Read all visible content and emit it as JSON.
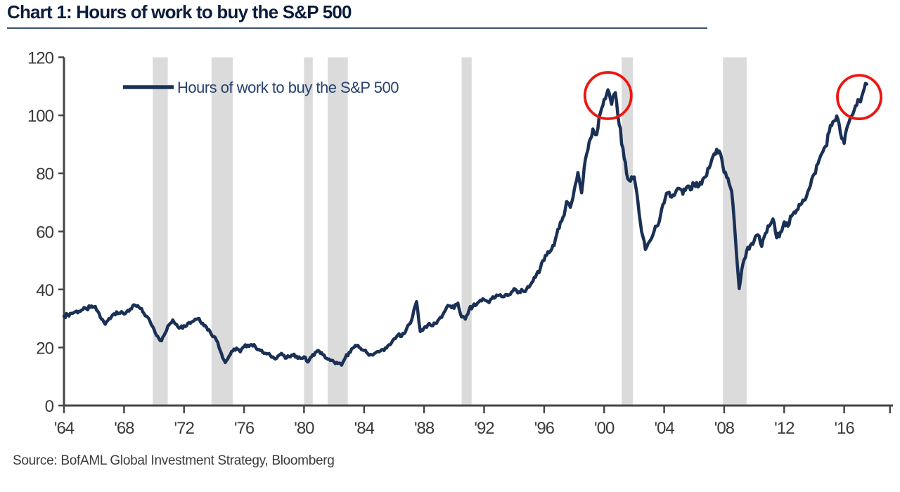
{
  "title": "Chart 1: Hours of work to buy the S&P 500",
  "source": "Source: BofAML Global Investment Strategy, Bloomberg",
  "colors": {
    "line": "#1a3055",
    "legend_text": "#26416f",
    "axis": "#454545",
    "tick_label": "#3a3a3a",
    "recession_band": "#dbdbdb",
    "annotation_red": "#ee1511",
    "title_text": "#0c1c3a",
    "title_rule": "#37506f"
  },
  "chart_data": {
    "type": "line",
    "title": "Chart 1: Hours of work to buy the S&P 500",
    "xlabel": "",
    "ylabel": "",
    "ylim": [
      0,
      120
    ],
    "xlim": [
      1964,
      2019.25
    ],
    "grid": false,
    "legend_position": "top-left-inside",
    "y_ticks": [
      0,
      20,
      40,
      60,
      80,
      100,
      120
    ],
    "x_ticks": [
      1964,
      1968,
      1972,
      1976,
      1980,
      1984,
      1988,
      1992,
      1996,
      2000,
      2004,
      2008,
      2012,
      2016
    ],
    "x_tick_labels": [
      "'64",
      "'68",
      "'72",
      "'76",
      "'80",
      "'84",
      "'88",
      "'92",
      "'96",
      "'00",
      "'04",
      "'08",
      "'12",
      "'16"
    ],
    "axis_end_tick_year": 2019.05,
    "recession_bands": [
      [
        1969.92,
        1970.92
      ],
      [
        1973.83,
        1975.25
      ],
      [
        1980.0,
        1980.58
      ],
      [
        1981.58,
        1982.92
      ],
      [
        1990.5,
        1991.17
      ],
      [
        2001.17,
        2001.92
      ],
      [
        2007.92,
        2009.5
      ]
    ],
    "annotation_circles": [
      {
        "year": 2000.26,
        "value": 106.8,
        "radius_px": 33
      },
      {
        "year": 2017.0,
        "value": 106.3,
        "radius_px": 31
      }
    ],
    "series": [
      {
        "name": "Hours of work to buy the S&P 500",
        "points": [
          [
            1964.0,
            30.8
          ],
          [
            1964.25,
            31.3
          ],
          [
            1964.5,
            31.8
          ],
          [
            1964.75,
            32.3
          ],
          [
            1965.0,
            32.5
          ],
          [
            1965.25,
            33.0
          ],
          [
            1965.5,
            33.3
          ],
          [
            1965.75,
            33.8
          ],
          [
            1966.0,
            34.0
          ],
          [
            1966.25,
            32.5
          ],
          [
            1966.5,
            29.8
          ],
          [
            1966.75,
            28.0
          ],
          [
            1967.0,
            30.0
          ],
          [
            1967.25,
            31.3
          ],
          [
            1967.5,
            32.3
          ],
          [
            1967.75,
            31.8
          ],
          [
            1968.0,
            31.5
          ],
          [
            1968.25,
            32.8
          ],
          [
            1968.5,
            33.3
          ],
          [
            1968.75,
            34.5
          ],
          [
            1969.0,
            33.8
          ],
          [
            1969.25,
            32.3
          ],
          [
            1969.5,
            30.8
          ],
          [
            1969.75,
            28.8
          ],
          [
            1970.0,
            26.3
          ],
          [
            1970.25,
            23.8
          ],
          [
            1970.5,
            22.3
          ],
          [
            1970.75,
            25.0
          ],
          [
            1971.0,
            27.8
          ],
          [
            1971.25,
            29.5
          ],
          [
            1971.5,
            28.0
          ],
          [
            1971.75,
            26.8
          ],
          [
            1972.0,
            27.5
          ],
          [
            1972.25,
            28.3
          ],
          [
            1972.5,
            28.8
          ],
          [
            1972.75,
            29.8
          ],
          [
            1973.0,
            30.0
          ],
          [
            1973.25,
            28.3
          ],
          [
            1973.5,
            27.0
          ],
          [
            1973.75,
            25.3
          ],
          [
            1974.0,
            23.8
          ],
          [
            1974.25,
            21.8
          ],
          [
            1974.5,
            17.8
          ],
          [
            1974.75,
            14.8
          ],
          [
            1975.0,
            17.0
          ],
          [
            1975.25,
            18.8
          ],
          [
            1975.5,
            19.8
          ],
          [
            1975.75,
            18.5
          ],
          [
            1976.0,
            20.3
          ],
          [
            1976.25,
            20.8
          ],
          [
            1976.5,
            21.0
          ],
          [
            1976.75,
            20.3
          ],
          [
            1977.0,
            19.3
          ],
          [
            1977.25,
            18.3
          ],
          [
            1977.5,
            17.8
          ],
          [
            1977.75,
            17.3
          ],
          [
            1978.0,
            16.3
          ],
          [
            1978.25,
            17.0
          ],
          [
            1978.5,
            18.0
          ],
          [
            1978.75,
            16.3
          ],
          [
            1979.0,
            16.8
          ],
          [
            1979.25,
            17.3
          ],
          [
            1979.5,
            17.0
          ],
          [
            1979.75,
            16.3
          ],
          [
            1980.0,
            16.8
          ],
          [
            1980.25,
            15.0
          ],
          [
            1980.5,
            16.8
          ],
          [
            1980.75,
            18.3
          ],
          [
            1981.0,
            18.8
          ],
          [
            1981.25,
            17.5
          ],
          [
            1981.5,
            16.3
          ],
          [
            1981.75,
            15.5
          ],
          [
            1982.0,
            15.0
          ],
          [
            1982.25,
            14.5
          ],
          [
            1982.5,
            13.9
          ],
          [
            1982.75,
            16.5
          ],
          [
            1983.0,
            18.3
          ],
          [
            1983.25,
            19.8
          ],
          [
            1983.5,
            20.5
          ],
          [
            1983.75,
            19.8
          ],
          [
            1984.0,
            19.0
          ],
          [
            1984.25,
            17.9
          ],
          [
            1984.5,
            17.5
          ],
          [
            1984.75,
            18.1
          ],
          [
            1985.0,
            18.5
          ],
          [
            1985.25,
            19.3
          ],
          [
            1985.5,
            19.8
          ],
          [
            1985.75,
            21.0
          ],
          [
            1986.0,
            23.0
          ],
          [
            1986.25,
            24.3
          ],
          [
            1986.5,
            23.8
          ],
          [
            1986.75,
            25.3
          ],
          [
            1987.0,
            28.0
          ],
          [
            1987.25,
            31.0
          ],
          [
            1987.5,
            35.8
          ],
          [
            1987.75,
            25.5
          ],
          [
            1988.0,
            26.8
          ],
          [
            1988.25,
            27.8
          ],
          [
            1988.5,
            27.5
          ],
          [
            1988.75,
            28.3
          ],
          [
            1989.0,
            29.8
          ],
          [
            1989.25,
            31.3
          ],
          [
            1989.5,
            33.8
          ],
          [
            1989.75,
            34.3
          ],
          [
            1990.0,
            33.5
          ],
          [
            1990.25,
            35.3
          ],
          [
            1990.5,
            30.5
          ],
          [
            1990.75,
            29.8
          ],
          [
            1991.0,
            33.0
          ],
          [
            1991.25,
            34.3
          ],
          [
            1991.5,
            34.8
          ],
          [
            1991.75,
            36.3
          ],
          [
            1992.0,
            36.5
          ],
          [
            1992.25,
            35.8
          ],
          [
            1992.5,
            36.8
          ],
          [
            1992.75,
            37.3
          ],
          [
            1993.0,
            38.0
          ],
          [
            1993.25,
            37.5
          ],
          [
            1993.5,
            38.3
          ],
          [
            1993.75,
            38.3
          ],
          [
            1994.0,
            40.3
          ],
          [
            1994.25,
            38.8
          ],
          [
            1994.5,
            40.0
          ],
          [
            1994.75,
            39.3
          ],
          [
            1995.0,
            40.8
          ],
          [
            1995.25,
            42.8
          ],
          [
            1995.5,
            45.3
          ],
          [
            1995.75,
            47.3
          ],
          [
            1996.0,
            50.0
          ],
          [
            1996.25,
            53.0
          ],
          [
            1996.5,
            53.8
          ],
          [
            1996.75,
            57.3
          ],
          [
            1997.0,
            61.0
          ],
          [
            1997.25,
            64.8
          ],
          [
            1997.5,
            70.3
          ],
          [
            1997.75,
            68.3
          ],
          [
            1998.0,
            74.0
          ],
          [
            1998.25,
            80.3
          ],
          [
            1998.5,
            73.3
          ],
          [
            1998.75,
            84.8
          ],
          [
            1999.0,
            90.8
          ],
          [
            1999.25,
            95.3
          ],
          [
            1999.5,
            93.3
          ],
          [
            1999.75,
            100.8
          ],
          [
            2000.0,
            105.5
          ],
          [
            2000.25,
            108.8
          ],
          [
            2000.5,
            103.8
          ],
          [
            2000.75,
            107.8
          ],
          [
            2001.0,
            96.8
          ],
          [
            2001.25,
            88.8
          ],
          [
            2001.5,
            79.8
          ],
          [
            2001.75,
            77.3
          ],
          [
            2002.0,
            78.8
          ],
          [
            2002.25,
            70.3
          ],
          [
            2002.5,
            59.8
          ],
          [
            2002.75,
            53.8
          ],
          [
            2003.0,
            56.3
          ],
          [
            2003.25,
            58.8
          ],
          [
            2003.5,
            61.8
          ],
          [
            2003.75,
            65.3
          ],
          [
            2004.0,
            69.8
          ],
          [
            2004.25,
            73.3
          ],
          [
            2004.5,
            71.8
          ],
          [
            2004.75,
            73.3
          ],
          [
            2005.0,
            74.8
          ],
          [
            2005.25,
            72.8
          ],
          [
            2005.5,
            75.3
          ],
          [
            2005.75,
            74.3
          ],
          [
            2006.0,
            76.3
          ],
          [
            2006.25,
            75.3
          ],
          [
            2006.5,
            76.3
          ],
          [
            2006.75,
            78.8
          ],
          [
            2007.0,
            81.8
          ],
          [
            2007.25,
            85.8
          ],
          [
            2007.5,
            88.3
          ],
          [
            2007.75,
            86.8
          ],
          [
            2008.0,
            80.3
          ],
          [
            2008.25,
            78.3
          ],
          [
            2008.5,
            73.8
          ],
          [
            2008.75,
            57.8
          ],
          [
            2009.0,
            40.3
          ],
          [
            2009.25,
            48.8
          ],
          [
            2009.5,
            53.3
          ],
          [
            2009.75,
            55.3
          ],
          [
            2010.0,
            56.8
          ],
          [
            2010.25,
            58.8
          ],
          [
            2010.5,
            54.8
          ],
          [
            2010.75,
            59.3
          ],
          [
            2011.0,
            61.8
          ],
          [
            2011.25,
            64.3
          ],
          [
            2011.5,
            57.8
          ],
          [
            2011.75,
            59.8
          ],
          [
            2012.0,
            63.3
          ],
          [
            2012.25,
            61.8
          ],
          [
            2012.5,
            65.3
          ],
          [
            2012.75,
            66.3
          ],
          [
            2013.0,
            69.3
          ],
          [
            2013.25,
            70.8
          ],
          [
            2013.5,
            72.3
          ],
          [
            2013.75,
            75.8
          ],
          [
            2014.0,
            79.8
          ],
          [
            2014.25,
            83.3
          ],
          [
            2014.5,
            86.8
          ],
          [
            2014.75,
            89.3
          ],
          [
            2015.0,
            94.3
          ],
          [
            2015.25,
            97.8
          ],
          [
            2015.5,
            99.8
          ],
          [
            2015.75,
            93.8
          ],
          [
            2016.0,
            90.3
          ],
          [
            2016.25,
            96.8
          ],
          [
            2016.5,
            99.8
          ],
          [
            2016.75,
            103.3
          ],
          [
            2017.0,
            105.3
          ],
          [
            2017.25,
            107.8
          ],
          [
            2017.5,
            110.8
          ]
        ]
      }
    ]
  }
}
